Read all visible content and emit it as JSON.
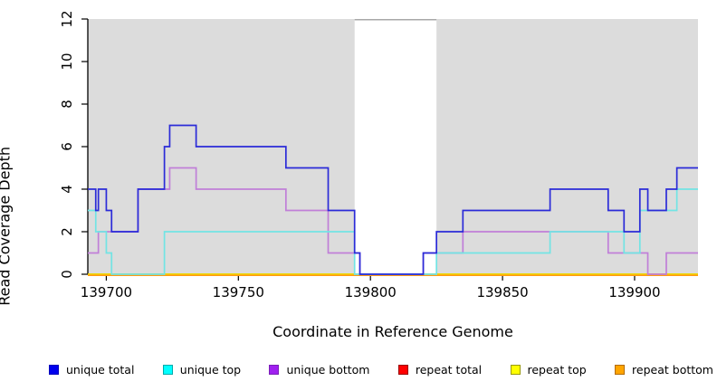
{
  "chart_data": {
    "type": "line",
    "subtype": "step-coverage-plot",
    "title": "",
    "xlabel": "Coordinate in Reference Genome",
    "ylabel": "Read Coverage Depth",
    "xlim": [
      139693,
      139924
    ],
    "ylim": [
      0,
      12
    ],
    "xticks": [
      "139700",
      "139750",
      "139800",
      "139850",
      "139900"
    ],
    "xtick_values": [
      139700,
      139750,
      139800,
      139850,
      139900
    ],
    "yticks": [
      "0",
      "2",
      "4",
      "6",
      "8",
      "10",
      "12"
    ],
    "ytick_values": [
      0,
      2,
      4,
      6,
      8,
      10,
      12
    ],
    "grid": "off",
    "legend_position": "bottom",
    "shaded_region_color": "#DCDCDC",
    "gap_top_border_color": "#A8A8A8",
    "axis_color": "#000000",
    "shaded_regions": [
      [
        139693,
        139794
      ],
      [
        139825,
        139924
      ]
    ],
    "uncovered_gap": [
      139794,
      139825
    ],
    "series": [
      {
        "name": "unique total",
        "color": "#2B2BD8",
        "legend_fill": "#0000EE",
        "legend_border": "#0000BB",
        "points": [
          [
            139693,
            4
          ],
          [
            139696,
            3
          ],
          [
            139697,
            4
          ],
          [
            139700,
            3
          ],
          [
            139702,
            2
          ],
          [
            139712,
            4
          ],
          [
            139722,
            6
          ],
          [
            139724,
            7
          ],
          [
            139734,
            6
          ],
          [
            139768,
            5
          ],
          [
            139784,
            3
          ],
          [
            139794,
            1
          ],
          [
            139796,
            0
          ],
          [
            139820,
            1
          ],
          [
            139825,
            2
          ],
          [
            139835,
            3
          ],
          [
            139868,
            4
          ],
          [
            139890,
            3
          ],
          [
            139896,
            2
          ],
          [
            139902,
            4
          ],
          [
            139905,
            3
          ],
          [
            139912,
            4
          ],
          [
            139916,
            5
          ],
          [
            139924,
            5
          ]
        ]
      },
      {
        "name": "unique top",
        "color": "#72E4E4",
        "legend_fill": "#00FFFF",
        "legend_border": "#00AAAA",
        "points": [
          [
            139693,
            3
          ],
          [
            139696,
            2
          ],
          [
            139700,
            1
          ],
          [
            139702,
            0
          ],
          [
            139722,
            2
          ],
          [
            139794,
            0
          ],
          [
            139825,
            1
          ],
          [
            139868,
            2
          ],
          [
            139896,
            1
          ],
          [
            139902,
            3
          ],
          [
            139916,
            4
          ],
          [
            139924,
            4
          ]
        ]
      },
      {
        "name": "unique bottom",
        "color": "#C07FD8",
        "legend_fill": "#A020F0",
        "legend_border": "#7A1FB8",
        "points": [
          [
            139693,
            1
          ],
          [
            139697,
            2
          ],
          [
            139712,
            4
          ],
          [
            139724,
            5
          ],
          [
            139734,
            4
          ],
          [
            139768,
            3
          ],
          [
            139784,
            1
          ],
          [
            139796,
            0
          ],
          [
            139820,
            1
          ],
          [
            139835,
            2
          ],
          [
            139890,
            1
          ],
          [
            139905,
            0
          ],
          [
            139912,
            1
          ],
          [
            139924,
            1
          ]
        ]
      },
      {
        "name": "repeat total",
        "color": "#E60000",
        "legend_fill": "#FF0000",
        "legend_border": "#990000",
        "points": [
          [
            139693,
            0
          ],
          [
            139924,
            0
          ]
        ]
      },
      {
        "name": "repeat top",
        "color": "#F0F000",
        "legend_fill": "#FFFF00",
        "legend_border": "#999900",
        "points": [
          [
            139693,
            0
          ],
          [
            139924,
            0
          ]
        ]
      },
      {
        "name": "repeat bottom",
        "color": "#FF9912",
        "legend_fill": "#FFA500",
        "legend_border": "#B36B00",
        "points": [
          [
            139693,
            0
          ],
          [
            139924,
            0
          ]
        ]
      }
    ]
  }
}
